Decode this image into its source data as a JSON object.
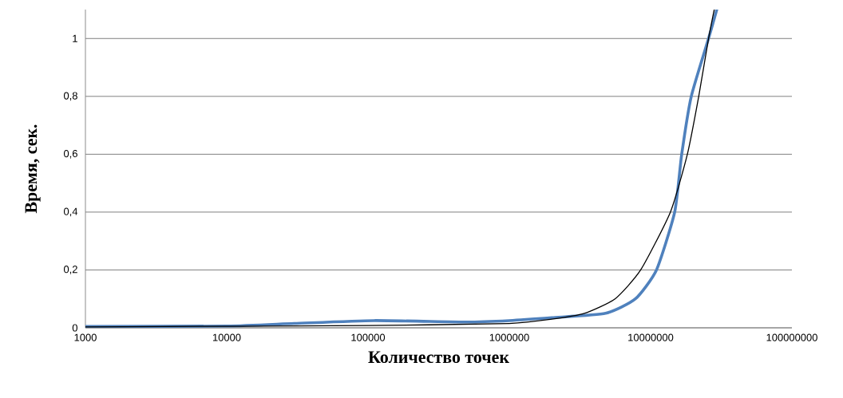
{
  "chart_data": {
    "type": "line",
    "xlabel": "Количество точек",
    "ylabel": "Время, сек.",
    "log": "x",
    "xlim": [
      1000,
      100000000
    ],
    "ylim": [
      0,
      1.1
    ],
    "xticks": [
      1000,
      10000,
      100000,
      1000000,
      10000000,
      100000000
    ],
    "yticks": [
      0,
      {
        "value": 0.2,
        "label": "0,2"
      },
      {
        "value": 0.4,
        "label": "0,4"
      },
      {
        "value": 0.6,
        "label": "0,6"
      },
      {
        "value": 0.8,
        "label": "0,8"
      },
      1
    ],
    "grid": "y",
    "marker": "none",
    "line_style": "solid",
    "series": [
      {
        "color": "#4f81bd",
        "x": [
          1000,
          10000,
          30000,
          110000,
          500000,
          1000000,
          2000000,
          4800000,
          7800000,
          11000000,
          14800000,
          16600000,
          19400000,
          25700000,
          29400000
        ],
        "values": [
          0.005,
          0.006,
          0.015,
          0.025,
          0.02,
          0.025,
          0.035,
          0.05,
          0.1,
          0.2,
          0.4,
          0.6,
          0.8,
          1.0,
          1.1
        ]
      },
      {
        "type": "line",
        "color": "#000000",
        "x": [
          1000,
          100000,
          1000000,
          2000000,
          3400000,
          5600000,
          8500000,
          13800000,
          18200000,
          21900000,
          25700000,
          28200000
        ],
        "values": [
          0.003,
          0.008,
          0.015,
          0.03,
          0.05,
          0.1,
          0.2,
          0.4,
          0.6,
          0.8,
          1.0,
          1.1
        ]
      }
    ]
  }
}
